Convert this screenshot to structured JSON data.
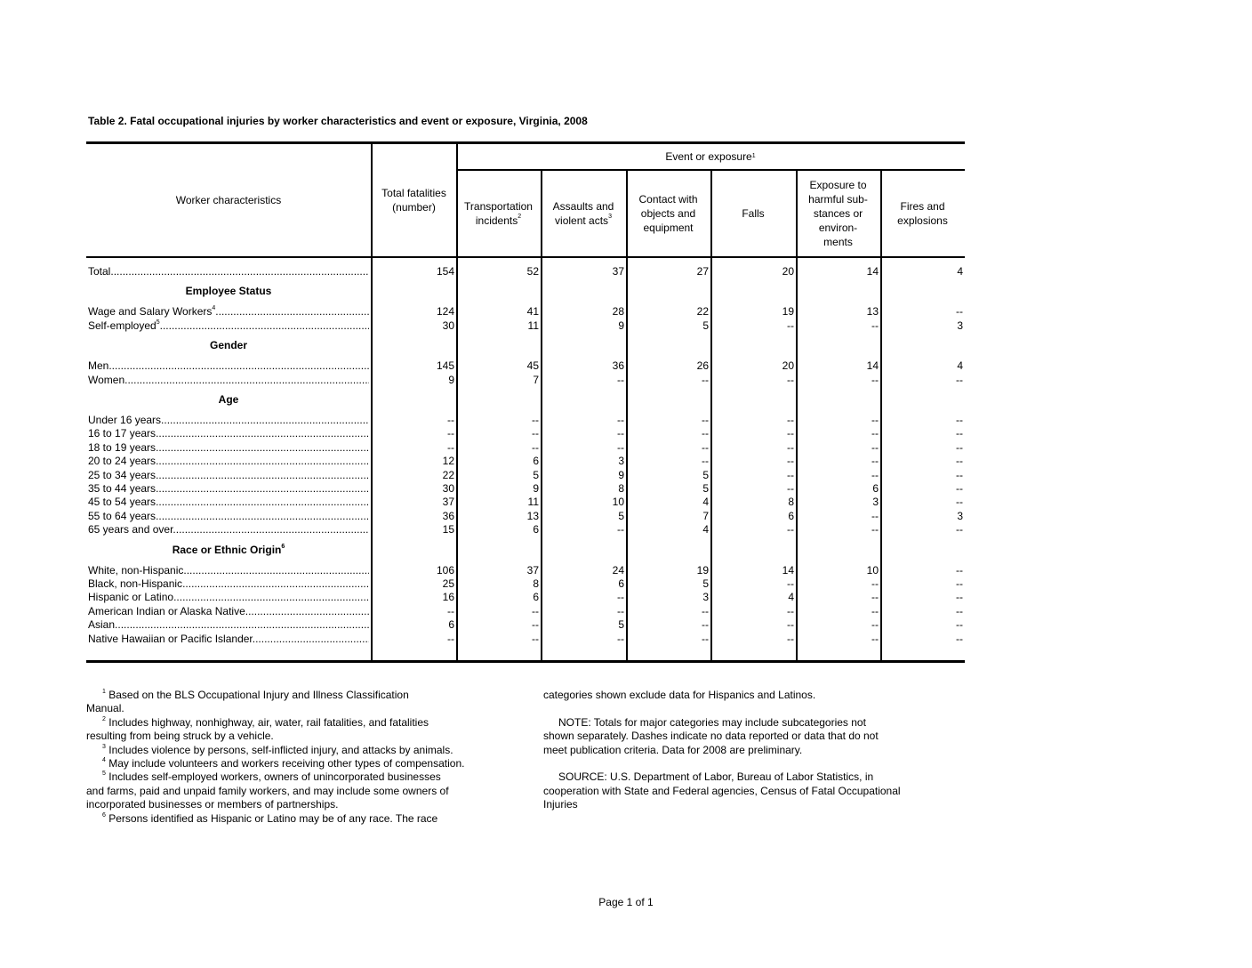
{
  "title": "Table 2.  Fatal occupational injuries by worker characteristics and event or exposure, Virginia, 2008",
  "header": {
    "worker_characteristics": "Worker characteristics",
    "total": [
      "Total fatalities",
      "(number)"
    ],
    "event_group": "Event or exposure",
    "event_group_sup": "1",
    "columns": [
      {
        "lines": [
          "Transportation",
          "incidents"
        ],
        "sup": "2"
      },
      {
        "lines": [
          "Assaults and",
          "violent acts"
        ],
        "sup": "3"
      },
      {
        "lines": [
          "Contact with",
          "objects and",
          "equipment"
        ],
        "sup": ""
      },
      {
        "lines": [
          "Falls"
        ],
        "sup": ""
      },
      {
        "lines": [
          "Exposure to",
          "harmful sub-",
          "stances or",
          "environ-",
          "ments"
        ],
        "sup": ""
      },
      {
        "lines": [
          "Fires and",
          "explosions"
        ],
        "sup": ""
      }
    ]
  },
  "rows": [
    {
      "type": "data",
      "label": "Total",
      "sup": "",
      "values": [
        "154",
        "52",
        "37",
        "27",
        "20",
        "14",
        "4"
      ]
    },
    {
      "type": "section",
      "label": "Employee Status",
      "sup": ""
    },
    {
      "type": "data",
      "label": "Wage and Salary Workers",
      "sup": "4",
      "values": [
        "124",
        "41",
        "28",
        "22",
        "19",
        "13",
        "--"
      ]
    },
    {
      "type": "data",
      "label": "Self-employed",
      "sup": "5",
      "values": [
        "30",
        "11",
        "9",
        "5",
        "--",
        "--",
        "3"
      ]
    },
    {
      "type": "section",
      "label": "Gender",
      "sup": ""
    },
    {
      "type": "data",
      "label": "Men",
      "sup": "",
      "values": [
        "145",
        "45",
        "36",
        "26",
        "20",
        "14",
        "4"
      ]
    },
    {
      "type": "data",
      "label": "Women",
      "sup": "",
      "values": [
        "9",
        "7",
        "--",
        "--",
        "--",
        "--",
        "--"
      ]
    },
    {
      "type": "section",
      "label": "Age",
      "sup": ""
    },
    {
      "type": "data",
      "label": "Under 16 years",
      "sup": "",
      "values": [
        "--",
        "--",
        "--",
        "--",
        "--",
        "--",
        "--"
      ]
    },
    {
      "type": "data",
      "label": "16 to 17 years",
      "sup": "",
      "values": [
        "--",
        "--",
        "--",
        "--",
        "--",
        "--",
        "--"
      ]
    },
    {
      "type": "data",
      "label": "18 to 19 years",
      "sup": "",
      "values": [
        "--",
        "--",
        "--",
        "--",
        "--",
        "--",
        "--"
      ]
    },
    {
      "type": "data",
      "label": "20 to 24 years",
      "sup": "",
      "values": [
        "12",
        "6",
        "3",
        "--",
        "--",
        "--",
        "--"
      ]
    },
    {
      "type": "data",
      "label": "25 to 34 years",
      "sup": "",
      "values": [
        "22",
        "5",
        "9",
        "5",
        "--",
        "--",
        "--"
      ]
    },
    {
      "type": "data",
      "label": "35 to 44 years",
      "sup": "",
      "values": [
        "30",
        "9",
        "8",
        "5",
        "--",
        "6",
        "--"
      ]
    },
    {
      "type": "data",
      "label": "45 to 54 years",
      "sup": "",
      "values": [
        "37",
        "11",
        "10",
        "4",
        "8",
        "3",
        "--"
      ]
    },
    {
      "type": "data",
      "label": "55 to 64 years",
      "sup": "",
      "values": [
        "36",
        "13",
        "5",
        "7",
        "6",
        "--",
        "3"
      ]
    },
    {
      "type": "data",
      "label": "65 years and over",
      "sup": "",
      "values": [
        "15",
        "6",
        "--",
        "4",
        "--",
        "--",
        "--"
      ]
    },
    {
      "type": "section",
      "label": "Race or Ethnic Origin",
      "sup": "6"
    },
    {
      "type": "data",
      "label": "White, non-Hispanic",
      "sup": "",
      "values": [
        "106",
        "37",
        "24",
        "19",
        "14",
        "10",
        "--"
      ]
    },
    {
      "type": "data",
      "label": "Black, non-Hispanic",
      "sup": "",
      "values": [
        "25",
        "8",
        "6",
        "5",
        "--",
        "--",
        "--"
      ]
    },
    {
      "type": "data",
      "label": "Hispanic or Latino",
      "sup": "",
      "values": [
        "16",
        "6",
        "--",
        "3",
        "4",
        "--",
        "--"
      ]
    },
    {
      "type": "data",
      "label": "American Indian or Alaska Native",
      "sup": "",
      "values": [
        "--",
        "--",
        "--",
        "--",
        "--",
        "--",
        "--"
      ]
    },
    {
      "type": "data",
      "label": "Asian",
      "sup": "",
      "values": [
        "6",
        "--",
        "5",
        "--",
        "--",
        "--",
        "--"
      ]
    },
    {
      "type": "data",
      "label": "Native Hawaiian or Pacific Islander",
      "sup": "",
      "values": [
        "--",
        "--",
        "--",
        "--",
        "--",
        "--",
        "--"
      ]
    }
  ],
  "footnotes_left": [
    {
      "sup": "1",
      "text": "Based on the BLS Occupational Injury and Illness Classification",
      "indent": true
    },
    {
      "sup": "",
      "text": "Manual.",
      "indent": false
    },
    {
      "sup": "2",
      "text": "Includes highway, nonhighway, air, water, rail fatalities, and fatalities",
      "indent": true
    },
    {
      "sup": "",
      "text": "resulting from being struck by a vehicle.",
      "indent": false
    },
    {
      "sup": "3",
      "text": "Includes violence by persons, self-inflicted injury, and attacks by animals.",
      "indent": true
    },
    {
      "sup": "4",
      "text": "May include volunteers and workers receiving other types of compensation.",
      "indent": true
    },
    {
      "sup": "5",
      "text": "Includes self-employed workers, owners of unincorporated businesses",
      "indent": true
    },
    {
      "sup": "",
      "text": "and farms, paid and unpaid family workers, and may include some owners of",
      "indent": false
    },
    {
      "sup": "",
      "text": "incorporated businesses or members of partnerships.",
      "indent": false
    },
    {
      "sup": "6",
      "text": "Persons identified as Hispanic or Latino may be of any race.   The race",
      "indent": true
    }
  ],
  "footnotes_right": [
    {
      "text": "categories shown exclude data for Hispanics and Latinos.",
      "indent": false
    },
    {
      "text": "",
      "indent": false
    },
    {
      "text": "NOTE: Totals for major categories may include subcategories not",
      "indent": true
    },
    {
      "text": "shown separately.  Dashes indicate no data reported or data that do not",
      "indent": false
    },
    {
      "text": "meet publication criteria.  Data for 2008 are preliminary.",
      "indent": false
    },
    {
      "text": "",
      "indent": false
    },
    {
      "text": "SOURCE:  U.S. Department of Labor, Bureau of Labor Statistics, in",
      "indent": true
    },
    {
      "text": "cooperation with State and Federal agencies, Census of Fatal Occupational",
      "indent": false
    },
    {
      "text": "Injuries",
      "indent": false
    }
  ],
  "page_label": "Page 1 of 1"
}
